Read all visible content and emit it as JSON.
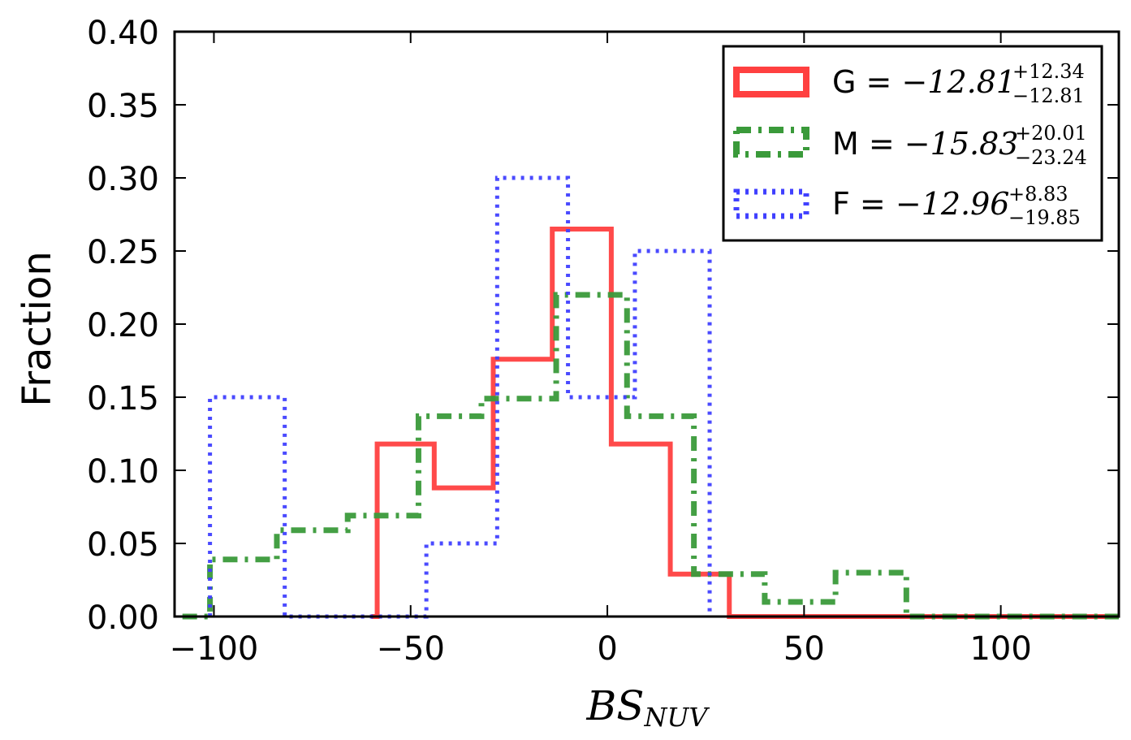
{
  "chart_data": {
    "type": "histogram",
    "xlabel": "BS",
    "xlabel_subscript": "NUV",
    "ylabel": "Fraction",
    "xlim": [
      -110,
      130
    ],
    "ylim": [
      0.0,
      0.4
    ],
    "xticks": [
      -100,
      -50,
      0,
      50,
      100
    ],
    "xtick_labels": [
      "−100",
      "−50",
      "0",
      "50",
      "100"
    ],
    "yticks": [
      0.0,
      0.05,
      0.1,
      0.15,
      0.2,
      0.25,
      0.3,
      0.35,
      0.4
    ],
    "ytick_labels": [
      "0.00",
      "0.05",
      "0.10",
      "0.15",
      "0.20",
      "0.25",
      "0.30",
      "0.35",
      "0.40"
    ],
    "legend_position": "top-right",
    "series": [
      {
        "name": "G",
        "color": "#ff4040",
        "linestyle": "solid",
        "label_prefix": "G = ",
        "label_value": "−12.81",
        "label_sup": "+12.34",
        "label_sub": "−12.81",
        "edges": [
          -60,
          -58.5,
          -44,
          -29,
          -14,
          1,
          16,
          31,
          130
        ],
        "values": [
          0.0,
          0.118,
          0.088,
          0.176,
          0.265,
          0.118,
          0.029,
          0.0
        ]
      },
      {
        "name": "M",
        "color": "#3a9a3a",
        "linestyle": "dashdot",
        "label_prefix": "M = ",
        "label_value": "−15.83",
        "label_sup": "+20.01",
        "label_sub": "−23.24",
        "edges": [
          -108,
          -101,
          -84,
          -66,
          -48,
          -32,
          -13,
          5,
          22,
          40,
          58,
          76,
          130
        ],
        "values": [
          0.0,
          0.039,
          0.059,
          0.069,
          0.137,
          0.149,
          0.22,
          0.137,
          0.029,
          0.01,
          0.03,
          0.0
        ]
      },
      {
        "name": "F",
        "color": "#4040ff",
        "linestyle": "dotted",
        "label_prefix": "F = ",
        "label_value": "−12.96",
        "label_sup": "+8.83",
        "label_sub": "−19.85",
        "edges": [
          -101,
          -82,
          -46,
          -28,
          -10,
          7,
          26
        ],
        "values": [
          0.15,
          0.0,
          0.05,
          0.3,
          0.15,
          0.25
        ]
      }
    ]
  }
}
